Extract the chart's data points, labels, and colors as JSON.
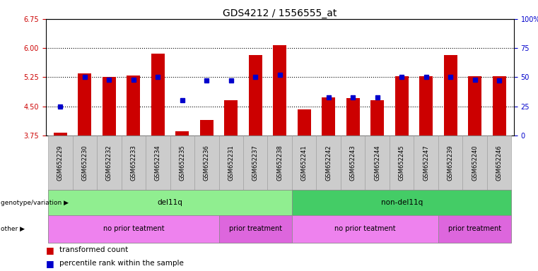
{
  "title": "GDS4212 / 1556555_at",
  "samples": [
    "GSM652229",
    "GSM652230",
    "GSM652232",
    "GSM652233",
    "GSM652234",
    "GSM652235",
    "GSM652236",
    "GSM652231",
    "GSM652237",
    "GSM652238",
    "GSM652241",
    "GSM652242",
    "GSM652243",
    "GSM652244",
    "GSM652245",
    "GSM652247",
    "GSM652239",
    "GSM652240",
    "GSM652246"
  ],
  "red_bar_values": [
    3.83,
    5.35,
    5.25,
    5.3,
    5.85,
    3.85,
    4.15,
    4.65,
    5.82,
    6.07,
    4.42,
    4.73,
    4.72,
    4.65,
    5.27,
    5.27,
    5.82,
    5.27,
    5.27
  ],
  "blue_pct": [
    25,
    50,
    48,
    48,
    50,
    30,
    47,
    47,
    50,
    52,
    null,
    33,
    33,
    33,
    50,
    50,
    50,
    48,
    47
  ],
  "ylim_left": [
    3.75,
    6.75
  ],
  "ylim_right": [
    0,
    100
  ],
  "yticks_left": [
    3.75,
    4.5,
    5.25,
    6.0,
    6.75
  ],
  "yticks_right": [
    0,
    25,
    50,
    75,
    100
  ],
  "dotted_lines": [
    4.5,
    5.25,
    6.0
  ],
  "bar_color": "#cc0000",
  "dot_color": "#0000cc",
  "bar_bottom": 3.75,
  "genotype_groups": [
    {
      "label": "del11q",
      "start": 0,
      "end": 9,
      "color": "#90ee90"
    },
    {
      "label": "non-del11q",
      "start": 10,
      "end": 18,
      "color": "#44cc66"
    }
  ],
  "other_groups": [
    {
      "label": "no prior teatment",
      "start": 0,
      "end": 6,
      "color": "#ee82ee"
    },
    {
      "label": "prior treatment",
      "start": 7,
      "end": 9,
      "color": "#dd66dd"
    },
    {
      "label": "no prior teatment",
      "start": 10,
      "end": 15,
      "color": "#ee82ee"
    },
    {
      "label": "prior treatment",
      "start": 16,
      "end": 18,
      "color": "#dd66dd"
    }
  ],
  "legend_red": "transformed count",
  "legend_blue": "percentile rank within the sample",
  "label_genotype": "genotype/variation",
  "label_other": "other",
  "title_fontsize": 10,
  "tick_fontsize": 7,
  "label_fontsize": 7.5,
  "xtick_bg": "#cccccc"
}
